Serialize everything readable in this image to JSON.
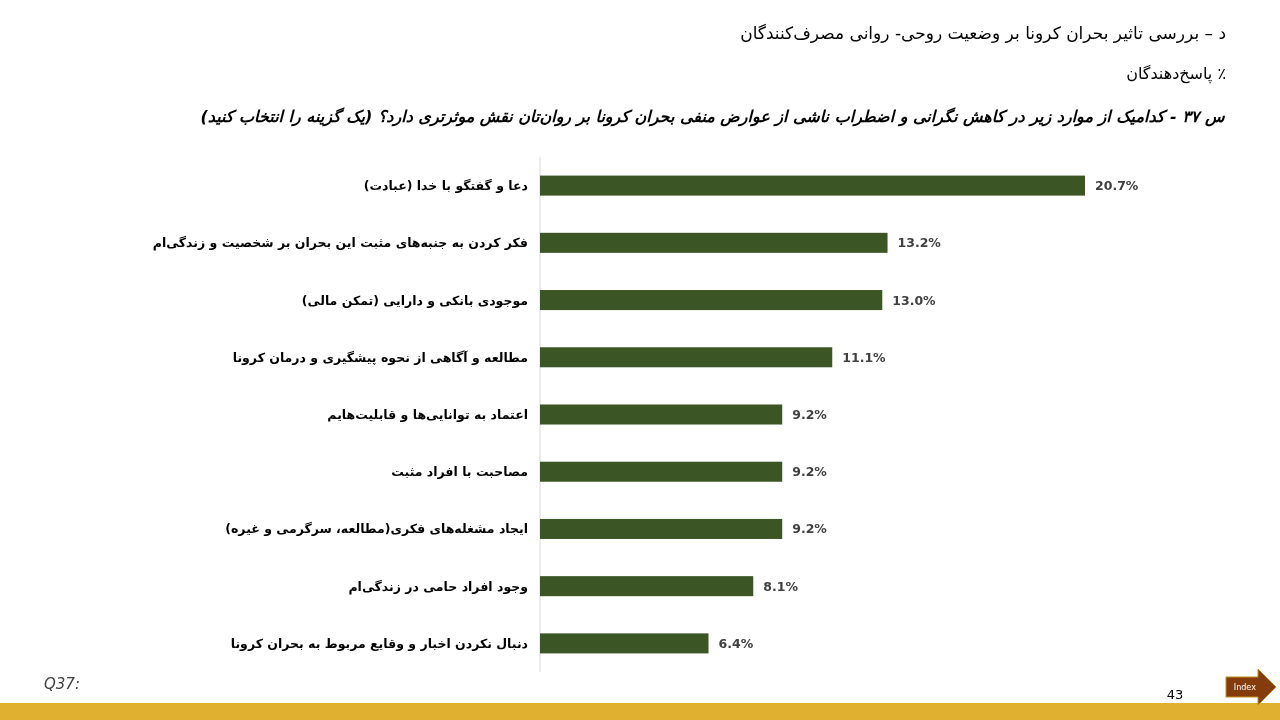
{
  "chart_data": {
    "type": "bar",
    "orientation": "horizontal",
    "title": "د – بررسی تاثیر بحران کرونا بر وضعیت روحی- روانی مصرف‌کنندگان",
    "subtitle": "٪ پاسخ‌دهندگان",
    "categories": [
      "دعا و گفتگو با خدا (عبادت)",
      "فکر کردن به جنبه‌های مثبت این بحران بر شخصیت و زندگی‌ام",
      "موجودی بانکی و دارایی (تمکن مالی)",
      "مطالعه و آگاهی از نحوه پیشگیری و درمان کرونا",
      "اعتماد به توانایی‌ها و قابلیت‌هایم",
      "مصاحبت با افراد مثبت",
      "ایجاد مشغله‌های فکری(مطالعه، سرگرمی و غیره)",
      "وجود افراد حامی در زندگی‌ام",
      "دنبال نکردن اخبار و وقایع مربوط به بحران کرونا"
    ],
    "values": [
      20.7,
      13.2,
      13.0,
      11.1,
      9.2,
      9.2,
      9.2,
      8.1,
      6.4
    ],
    "value_labels": [
      "20.7%",
      "13.2%",
      "13.0%",
      "11.1%",
      "9.2%",
      "9.2%",
      "9.2%",
      "8.1%",
      "6.4%"
    ],
    "color": "#3b5524",
    "annotations": [
      "س ۳۷ - کدامیک از موارد زیر در کاهش نگرانی و اضطراب ناشی از عوارض منفی بحران کرونا بر روان‌تان نقش موثرتری دارد؟ (یک گزینه را انتخاب کنید)",
      "Q37:",
      "43",
      "Index"
    ]
  }
}
